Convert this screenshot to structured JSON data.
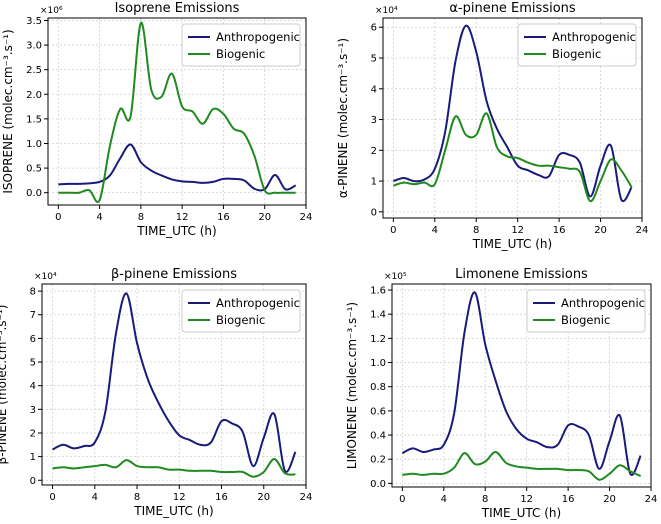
{
  "figure": {
    "colors": {
      "Anthropogenic": "#1a1a7a",
      "Biogenic": "#1f8a1f",
      "grid": "#d0d0d0"
    }
  },
  "chart_data": [
    {
      "type": "line",
      "title": "Isoprene Emissions",
      "xlabel": "TIME_UTC (h)",
      "ylabel": "ISOPRENE (molec.cm⁻³.s⁻¹)",
      "exponent": "×10⁶",
      "xlim": [
        -1,
        24
      ],
      "ylim": [
        -0.25,
        3.55
      ],
      "xticks": [
        0,
        4,
        8,
        12,
        16,
        20,
        24
      ],
      "yticks": [
        0.0,
        0.5,
        1.0,
        1.5,
        2.0,
        2.5,
        3.0,
        3.5
      ],
      "ytick_labels": [
        "0.0",
        "0.5",
        "1.0",
        "1.5",
        "2.0",
        "2.5",
        "3.0",
        "3.5"
      ],
      "legend": "top-right",
      "x": [
        0,
        1,
        2,
        3,
        4,
        5,
        6,
        7,
        8,
        9,
        10,
        11,
        12,
        13,
        14,
        15,
        16,
        17,
        18,
        19,
        20,
        21,
        22,
        23
      ],
      "series": [
        {
          "name": "Anthropogenic",
          "values": [
            0.17,
            0.18,
            0.18,
            0.19,
            0.22,
            0.35,
            0.7,
            0.98,
            0.62,
            0.45,
            0.35,
            0.27,
            0.23,
            0.22,
            0.2,
            0.22,
            0.28,
            0.28,
            0.25,
            0.08,
            0.07,
            0.36,
            0.07,
            0.15
          ]
        },
        {
          "name": "Biogenic",
          "values": [
            0.0,
            0.0,
            0.0,
            0.05,
            -0.15,
            0.95,
            1.7,
            1.55,
            3.45,
            2.1,
            1.95,
            2.42,
            1.75,
            1.65,
            1.4,
            1.7,
            1.6,
            1.3,
            1.2,
            0.75,
            0.05,
            0.0,
            0.0,
            0.0
          ]
        }
      ]
    },
    {
      "type": "line",
      "title": "α-pinene Emissions",
      "xlabel": "TIME_UTC (h)",
      "ylabel": "α-PINENE (molec.cm⁻³.s⁻¹)",
      "exponent": "×10⁴",
      "xlim": [
        -1,
        24
      ],
      "ylim": [
        -0.2,
        6.3
      ],
      "xticks": [
        0,
        4,
        8,
        12,
        16,
        20,
        24
      ],
      "yticks": [
        0,
        1,
        2,
        3,
        4,
        5,
        6
      ],
      "ytick_labels": [
        "0",
        "1",
        "2",
        "3",
        "4",
        "5",
        "6"
      ],
      "legend": "top-right",
      "x": [
        0,
        1,
        2,
        3,
        4,
        5,
        6,
        7,
        8,
        9,
        10,
        11,
        12,
        13,
        14,
        15,
        16,
        17,
        18,
        19,
        20,
        21,
        22,
        23
      ],
      "series": [
        {
          "name": "Anthropogenic",
          "values": [
            1.0,
            1.1,
            1.0,
            1.05,
            1.4,
            2.6,
            4.9,
            6.05,
            5.2,
            3.6,
            2.7,
            2.1,
            1.5,
            1.35,
            1.2,
            1.15,
            1.85,
            1.85,
            1.6,
            0.5,
            1.5,
            2.15,
            0.4,
            0.8
          ]
        },
        {
          "name": "Biogenic",
          "values": [
            0.85,
            0.95,
            0.9,
            0.95,
            0.9,
            2.0,
            3.1,
            2.5,
            2.5,
            3.2,
            2.1,
            1.8,
            1.75,
            1.6,
            1.5,
            1.5,
            1.45,
            1.4,
            1.3,
            0.35,
            1.0,
            1.7,
            1.35,
            0.8
          ]
        }
      ]
    },
    {
      "type": "line",
      "title": "β-pinene Emissions",
      "xlabel": "TIME_UTC (h)",
      "ylabel": "β-PINENE (molec.cm⁻³.s⁻¹)",
      "exponent": "×10⁴",
      "xlim": [
        -1,
        24
      ],
      "ylim": [
        -0.2,
        8.3
      ],
      "xticks": [
        0,
        4,
        8,
        12,
        16,
        20,
        24
      ],
      "yticks": [
        0,
        1,
        2,
        3,
        4,
        5,
        6,
        7,
        8
      ],
      "ytick_labels": [
        "0",
        "1",
        "2",
        "3",
        "4",
        "5",
        "6",
        "7",
        "8"
      ],
      "legend": "top-right",
      "x": [
        0,
        1,
        2,
        3,
        4,
        5,
        6,
        7,
        8,
        9,
        10,
        11,
        12,
        13,
        14,
        15,
        16,
        17,
        18,
        19,
        20,
        21,
        22,
        23
      ],
      "series": [
        {
          "name": "Anthropogenic",
          "values": [
            1.3,
            1.5,
            1.35,
            1.45,
            1.6,
            2.9,
            6.2,
            7.9,
            5.8,
            4.3,
            3.3,
            2.5,
            1.9,
            1.7,
            1.5,
            1.6,
            2.5,
            2.4,
            2.05,
            0.6,
            1.8,
            2.8,
            0.4,
            1.2
          ]
        },
        {
          "name": "Biogenic",
          "values": [
            0.5,
            0.55,
            0.5,
            0.55,
            0.6,
            0.65,
            0.55,
            0.85,
            0.6,
            0.55,
            0.55,
            0.45,
            0.45,
            0.4,
            0.4,
            0.4,
            0.35,
            0.35,
            0.35,
            0.15,
            0.35,
            0.9,
            0.3,
            0.25
          ]
        }
      ]
    },
    {
      "type": "line",
      "title": "Limonene Emissions",
      "xlabel": "TIME_UTC (h)",
      "ylabel": "LIMONENE (molec.cm⁻³.s⁻¹)",
      "exponent": "×10⁵",
      "xlim": [
        -1,
        24
      ],
      "ylim": [
        -0.03,
        1.65
      ],
      "xticks": [
        0,
        4,
        8,
        12,
        16,
        20,
        24
      ],
      "yticks": [
        0.0,
        0.2,
        0.4,
        0.6,
        0.8,
        1.0,
        1.2,
        1.4,
        1.6
      ],
      "ytick_labels": [
        "0.0",
        "0.2",
        "0.4",
        "0.6",
        "0.8",
        "1.0",
        "1.2",
        "1.4",
        "1.6"
      ],
      "legend": "top-right",
      "x": [
        0,
        1,
        2,
        3,
        4,
        5,
        6,
        7,
        8,
        9,
        10,
        11,
        12,
        13,
        14,
        15,
        16,
        17,
        18,
        19,
        20,
        21,
        22,
        23
      ],
      "series": [
        {
          "name": "Anthropogenic",
          "values": [
            0.25,
            0.29,
            0.26,
            0.28,
            0.32,
            0.58,
            1.25,
            1.58,
            1.15,
            0.85,
            0.6,
            0.45,
            0.37,
            0.34,
            0.3,
            0.32,
            0.48,
            0.47,
            0.4,
            0.12,
            0.35,
            0.56,
            0.08,
            0.23
          ]
        },
        {
          "name": "Biogenic",
          "values": [
            0.07,
            0.08,
            0.07,
            0.08,
            0.08,
            0.13,
            0.25,
            0.16,
            0.18,
            0.26,
            0.17,
            0.14,
            0.13,
            0.12,
            0.12,
            0.12,
            0.11,
            0.11,
            0.1,
            0.03,
            0.08,
            0.15,
            0.1,
            0.06
          ]
        }
      ]
    }
  ]
}
